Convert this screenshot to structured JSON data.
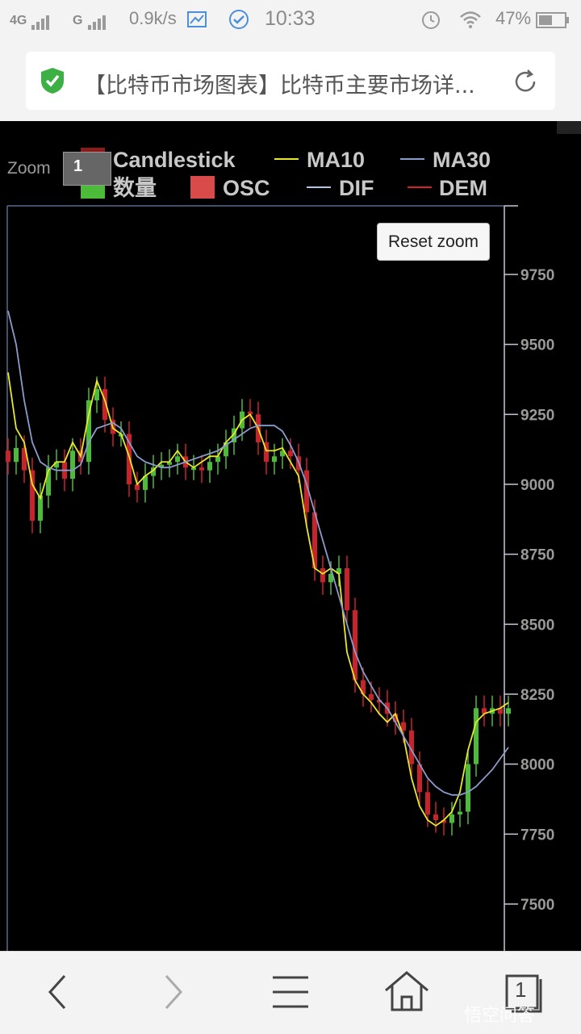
{
  "status_bar": {
    "signal1": "4G",
    "signal2": "G",
    "speed": "0.9k/s",
    "time": "10:33",
    "battery": "47%"
  },
  "address_bar": {
    "title": "【比特币市场图表】比特币主要市场详..."
  },
  "chart": {
    "zoom_label": "Zoom",
    "zoom_value": "1",
    "reset_label": "Reset zoom",
    "legend": [
      {
        "name": "Candlestick",
        "color": "#8b1a1a",
        "kind": "box"
      },
      {
        "name": "MA10",
        "color": "#e8e82a",
        "kind": "line"
      },
      {
        "name": "MA30",
        "color": "#8a9ccc",
        "kind": "line"
      },
      {
        "name": "数量",
        "color": "#4cbb3a",
        "kind": "box"
      },
      {
        "name": "OSC",
        "color": "#d94a4a",
        "kind": "box"
      },
      {
        "name": "DIF",
        "color": "#b0c8e8",
        "kind": "line"
      },
      {
        "name": "DEM",
        "color": "#d9202a",
        "kind": "line"
      }
    ]
  },
  "chart_data": {
    "type": "line",
    "title": "",
    "ylim": [
      7400,
      9900
    ],
    "y_ticks": [
      "9750",
      "9500",
      "9250",
      "9000",
      "8750",
      "8500",
      "8250",
      "8000",
      "7750",
      "7500"
    ],
    "series": [
      {
        "name": "Candlestick",
        "x": [
          0,
          10,
          20,
          30,
          40,
          50,
          60,
          70,
          80,
          90,
          100,
          110,
          120,
          130,
          140,
          150,
          160,
          170,
          180,
          190,
          200,
          210,
          220,
          230,
          240,
          250,
          260,
          270,
          280,
          290,
          300,
          310,
          320,
          330,
          340,
          350,
          360,
          370,
          380,
          390,
          400,
          410,
          420,
          430,
          440,
          450,
          460,
          470,
          480,
          490,
          500,
          510,
          520,
          530,
          540,
          550,
          560,
          570,
          580,
          590,
          600,
          610,
          620
        ],
        "values": [
          9080,
          9130,
          9050,
          8870,
          8960,
          9060,
          9080,
          9020,
          9120,
          9080,
          9300,
          9340,
          9230,
          9180,
          9180,
          9000,
          8980,
          9030,
          9060,
          9070,
          9080,
          9100,
          9060,
          9060,
          9050,
          9080,
          9100,
          9150,
          9200,
          9260,
          9250,
          9150,
          9080,
          9100,
          9120,
          9100,
          9050,
          8900,
          8700,
          8650,
          8680,
          8700,
          8550,
          8300,
          8250,
          8230,
          8220,
          8180,
          8150,
          8120,
          8000,
          7900,
          7820,
          7800,
          7790,
          7820,
          7830,
          8000,
          8200,
          8180,
          8200,
          8180,
          8200
        ]
      },
      {
        "name": "MA10",
        "x": [
          0,
          10,
          20,
          30,
          40,
          50,
          60,
          70,
          80,
          90,
          100,
          110,
          120,
          130,
          140,
          150,
          160,
          170,
          180,
          190,
          200,
          210,
          220,
          230,
          240,
          250,
          260,
          270,
          280,
          290,
          300,
          310,
          320,
          330,
          340,
          350,
          360,
          370,
          380,
          390,
          400,
          410,
          420,
          430,
          440,
          450,
          460,
          470,
          480,
          490,
          500,
          510,
          520,
          530,
          540,
          550,
          560,
          570,
          580,
          590,
          600,
          610,
          620
        ],
        "values": [
          9400,
          9200,
          9150,
          9000,
          8950,
          9050,
          9080,
          9080,
          9150,
          9100,
          9250,
          9370,
          9300,
          9200,
          9180,
          9100,
          9000,
          9030,
          9050,
          9080,
          9080,
          9120,
          9080,
          9060,
          9080,
          9100,
          9100,
          9150,
          9180,
          9230,
          9250,
          9200,
          9120,
          9120,
          9130,
          9080,
          9030,
          8850,
          8700,
          8680,
          8700,
          8680,
          8400,
          8300,
          8250,
          8220,
          8180,
          8150,
          8180,
          8100,
          7950,
          7850,
          7800,
          7780,
          7800,
          7830,
          7900,
          8050,
          8150,
          8180,
          8190,
          8200,
          8220
        ]
      },
      {
        "name": "MA30",
        "x": [
          0,
          10,
          20,
          30,
          40,
          50,
          60,
          70,
          80,
          90,
          100,
          110,
          120,
          130,
          140,
          150,
          160,
          170,
          180,
          190,
          200,
          210,
          220,
          230,
          240,
          250,
          260,
          270,
          280,
          290,
          300,
          310,
          320,
          330,
          340,
          350,
          360,
          370,
          380,
          390,
          400,
          410,
          420,
          430,
          440,
          450,
          460,
          470,
          480,
          490,
          500,
          510,
          520,
          530,
          540,
          550,
          560,
          570,
          580,
          590,
          600,
          610,
          620
        ],
        "values": [
          9620,
          9500,
          9300,
          9150,
          9080,
          9060,
          9050,
          9050,
          9050,
          9070,
          9150,
          9200,
          9210,
          9220,
          9200,
          9150,
          9100,
          9080,
          9070,
          9060,
          9060,
          9070,
          9080,
          9090,
          9100,
          9110,
          9120,
          9140,
          9160,
          9180,
          9200,
          9210,
          9210,
          9210,
          9190,
          9140,
          9080,
          9000,
          8900,
          8800,
          8700,
          8600,
          8500,
          8400,
          8330,
          8280,
          8230,
          8200,
          8150,
          8100,
          8050,
          8000,
          7950,
          7920,
          7900,
          7890,
          7890,
          7900,
          7920,
          7950,
          7980,
          8020,
          8060
        ]
      }
    ]
  },
  "nav": {
    "back": "back",
    "forward": "forward",
    "menu": "menu",
    "home": "home",
    "tabs_count": "1"
  },
  "watermark": "悟空问答"
}
